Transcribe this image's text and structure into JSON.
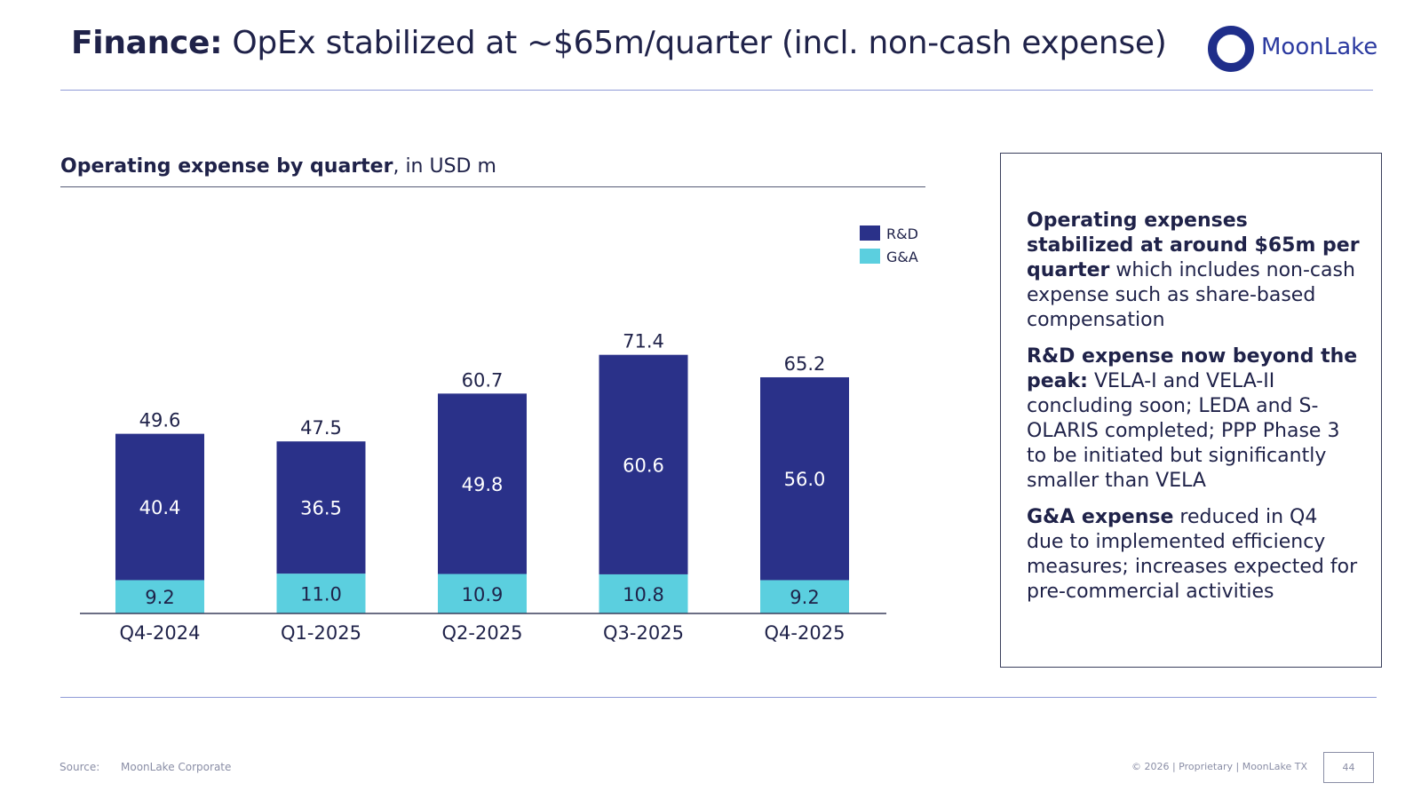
{
  "header": {
    "title_bold": "Finance:",
    "title_rest": " OpEx stabilized at ~$65m/quarter (incl. non-cash expense)"
  },
  "logo": {
    "text": "MoonLake",
    "color": "#2b3aa0"
  },
  "chart_data": {
    "type": "bar",
    "stacked": true,
    "title": "Operating expense by quarter",
    "title_suffix": ", in USD m",
    "categories": [
      "Q4-2024",
      "Q1-2025",
      "Q2-2025",
      "Q3-2025",
      "Q4-2025"
    ],
    "series": [
      {
        "name": "G&A",
        "values": [
          9.2,
          11.0,
          10.9,
          10.8,
          9.2
        ],
        "color": "#5bcfdf",
        "value_labels": [
          "9.2",
          "11.0",
          "10.9",
          "10.8",
          "9.2"
        ]
      },
      {
        "name": "R&D",
        "values": [
          40.4,
          36.5,
          49.8,
          60.6,
          56.0
        ],
        "color": "#2a3189",
        "value_labels": [
          "40.4",
          "36.5",
          "49.8",
          "60.6",
          "56.0"
        ]
      }
    ],
    "totals": [
      49.6,
      47.5,
      60.7,
      71.4,
      65.2
    ],
    "total_labels": [
      "49.6",
      "47.5",
      "60.7",
      "71.4",
      "65.2"
    ],
    "legend": {
      "position": "top-right",
      "order": [
        "R&D",
        "G&A"
      ]
    },
    "ylim": [
      0,
      72
    ],
    "grid": false,
    "xlabel": "",
    "ylabel": ""
  },
  "notes": {
    "p1_bold": "Operating expenses stabilized at around $65m per quarter",
    "p1_text": " which includes non-cash expense such as share-based compensation",
    "p2_bold": "R&D expense now beyond the peak:",
    "p2_text": " VELA-I and VELA-II concluding soon; LEDA and S-OLARIS completed; PPP Phase 3 to be initiated but significantly smaller than VELA",
    "p3_bold": "G&A expense",
    "p3_text": " reduced in Q4 due to implemented efficiency measures; increases expected for pre-commercial activities"
  },
  "footer": {
    "source_label": "Source:",
    "source_value": "MoonLake Corporate",
    "copyright": "© 2026 | Proprietary | MoonLake TX",
    "page_number": "44"
  }
}
